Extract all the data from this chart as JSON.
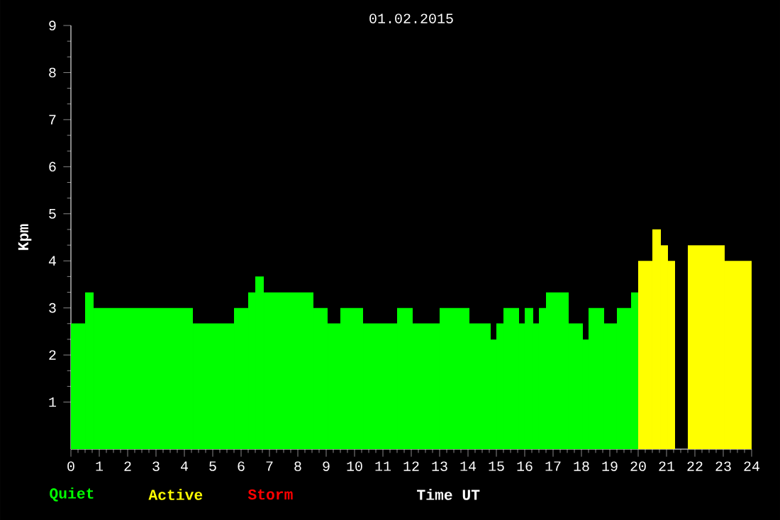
{
  "chart_data": {
    "type": "histogram",
    "title": "01.02.2015",
    "xlabel": "Time UT",
    "ylabel": "Kpm",
    "bins": [
      0,
      0.5,
      0.8,
      4.3,
      5.75,
      6.25,
      6.5,
      6.8,
      8.55,
      9.05,
      9.5,
      10.3,
      11.5,
      12.05,
      13.0,
      14.05,
      14.8,
      15.0,
      15.25,
      15.8,
      16.0,
      16.3,
      16.5,
      16.75,
      17.55,
      18.05,
      18.25,
      18.8,
      19.25,
      19.75,
      20.0,
      20.5,
      20.8,
      21.05,
      21.3,
      21.75,
      23.05,
      24
    ],
    "series": [
      {
        "name": "Quiet",
        "color": "#00ff00",
        "values": [
          2.67,
          3.33,
          3,
          2.67,
          3,
          3.33,
          3.67,
          3.33,
          3,
          2.67,
          3,
          2.67,
          3,
          2.67,
          3,
          2.67,
          2.33,
          2.67,
          3,
          2.67,
          3,
          2.67,
          3,
          3.33,
          2.67,
          2.33,
          3,
          2.67,
          3,
          3.33,
          null,
          null,
          null,
          null,
          null,
          null,
          null
        ]
      },
      {
        "name": "Active",
        "color": "#ffff00",
        "values": [
          null,
          null,
          null,
          null,
          null,
          null,
          null,
          null,
          null,
          null,
          null,
          null,
          null,
          null,
          null,
          null,
          null,
          null,
          null,
          null,
          null,
          null,
          null,
          null,
          null,
          null,
          null,
          null,
          null,
          null,
          4,
          4.67,
          4.33,
          4,
          null,
          4.33,
          4
        ]
      }
    ],
    "annotations": [
      "Storm"
    ],
    "xlim": [
      0,
      24
    ],
    "xticks": [
      0,
      1,
      2,
      3,
      4,
      5,
      6,
      7,
      8,
      9,
      10,
      11,
      12,
      13,
      14,
      15,
      16,
      17,
      18,
      19,
      20,
      21,
      22,
      23,
      24
    ],
    "ylim": [
      0,
      9
    ],
    "yticks": [
      1,
      2,
      3,
      4,
      5,
      6,
      7,
      8,
      9
    ],
    "legend": "bottom",
    "grid": false
  }
}
